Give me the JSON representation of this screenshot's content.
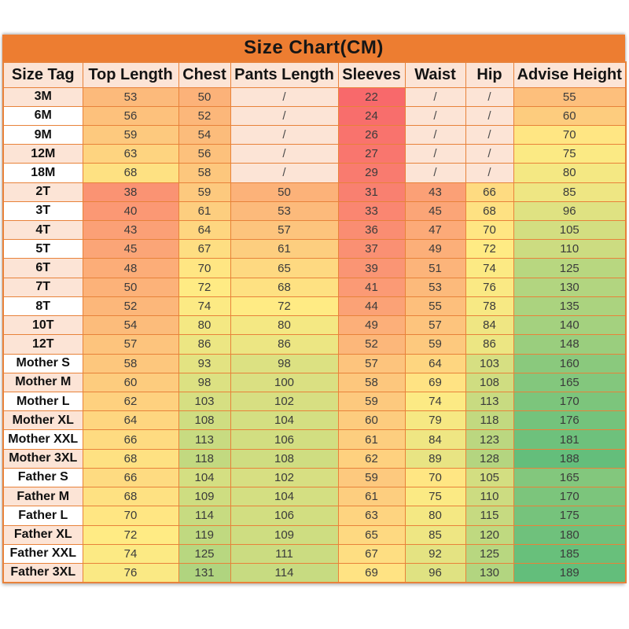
{
  "title": "Size Chart(CM)",
  "colors": {
    "title_bg": "#ED7D31",
    "header_bg": "#FCE4D6",
    "tag_pink": "#FCE4D6",
    "tag_white": "#FFFFFF",
    "slash_bg": "#FCE4D6",
    "grid_border": "#E8823A",
    "scale_min_color": "#F8696B",
    "scale_mid_color": "#FFEB84",
    "scale_max_color": "#63BE7B"
  },
  "chart_data": {
    "type": "table",
    "title": "Size Chart(CM)",
    "columns": [
      "Size Tag",
      "Top Length",
      "Chest",
      "Pants Length",
      "Sleeves",
      "Waist",
      "Hip",
      "Advise Height"
    ],
    "rows": [
      {
        "tag": "3M",
        "tag_bg": "pink",
        "values": [
          "53",
          "50",
          "/",
          "22",
          "/",
          "/",
          "55"
        ]
      },
      {
        "tag": "6M",
        "tag_bg": "white",
        "values": [
          "56",
          "52",
          "/",
          "24",
          "/",
          "/",
          "60"
        ]
      },
      {
        "tag": "9M",
        "tag_bg": "white",
        "values": [
          "59",
          "54",
          "/",
          "26",
          "/",
          "/",
          "70"
        ]
      },
      {
        "tag": "12M",
        "tag_bg": "pink",
        "values": [
          "63",
          "56",
          "/",
          "27",
          "/",
          "/",
          "75"
        ]
      },
      {
        "tag": "18M",
        "tag_bg": "white",
        "values": [
          "68",
          "58",
          "/",
          "29",
          "/",
          "/",
          "80"
        ]
      },
      {
        "tag": "2T",
        "tag_bg": "pink",
        "values": [
          "38",
          "59",
          "50",
          "31",
          "43",
          "66",
          "85"
        ]
      },
      {
        "tag": "3T",
        "tag_bg": "white",
        "values": [
          "40",
          "61",
          "53",
          "33",
          "45",
          "68",
          "96"
        ]
      },
      {
        "tag": "4T",
        "tag_bg": "pink",
        "values": [
          "43",
          "64",
          "57",
          "36",
          "47",
          "70",
          "105"
        ]
      },
      {
        "tag": "5T",
        "tag_bg": "white",
        "values": [
          "45",
          "67",
          "61",
          "37",
          "49",
          "72",
          "110"
        ]
      },
      {
        "tag": "6T",
        "tag_bg": "pink",
        "values": [
          "48",
          "70",
          "65",
          "39",
          "51",
          "74",
          "125"
        ]
      },
      {
        "tag": "7T",
        "tag_bg": "pink",
        "values": [
          "50",
          "72",
          "68",
          "41",
          "53",
          "76",
          "130"
        ]
      },
      {
        "tag": "8T",
        "tag_bg": "white",
        "values": [
          "52",
          "74",
          "72",
          "44",
          "55",
          "78",
          "135"
        ]
      },
      {
        "tag": "10T",
        "tag_bg": "pink",
        "values": [
          "54",
          "80",
          "80",
          "49",
          "57",
          "84",
          "140"
        ]
      },
      {
        "tag": "12T",
        "tag_bg": "pink",
        "values": [
          "57",
          "86",
          "86",
          "52",
          "59",
          "86",
          "148"
        ]
      },
      {
        "tag": "Mother S",
        "tag_bg": "white",
        "values": [
          "58",
          "93",
          "98",
          "57",
          "64",
          "103",
          "160"
        ]
      },
      {
        "tag": "Mother M",
        "tag_bg": "pink",
        "values": [
          "60",
          "98",
          "100",
          "58",
          "69",
          "108",
          "165"
        ]
      },
      {
        "tag": "Mother L",
        "tag_bg": "white",
        "values": [
          "62",
          "103",
          "102",
          "59",
          "74",
          "113",
          "170"
        ]
      },
      {
        "tag": "Mother XL",
        "tag_bg": "pink",
        "values": [
          "64",
          "108",
          "104",
          "60",
          "79",
          "118",
          "176"
        ]
      },
      {
        "tag": "Mother XXL",
        "tag_bg": "white",
        "values": [
          "66",
          "113",
          "106",
          "61",
          "84",
          "123",
          "181"
        ]
      },
      {
        "tag": "Mother 3XL",
        "tag_bg": "pink",
        "values": [
          "68",
          "118",
          "108",
          "62",
          "89",
          "128",
          "188"
        ]
      },
      {
        "tag": "Father S",
        "tag_bg": "white",
        "values": [
          "66",
          "104",
          "102",
          "59",
          "70",
          "105",
          "165"
        ]
      },
      {
        "tag": "Father M",
        "tag_bg": "pink",
        "values": [
          "68",
          "109",
          "104",
          "61",
          "75",
          "110",
          "170"
        ]
      },
      {
        "tag": "Father L",
        "tag_bg": "white",
        "values": [
          "70",
          "114",
          "106",
          "63",
          "80",
          "115",
          "175"
        ]
      },
      {
        "tag": "Father XL",
        "tag_bg": "pink",
        "values": [
          "72",
          "119",
          "109",
          "65",
          "85",
          "120",
          "180"
        ]
      },
      {
        "tag": "Father XXL",
        "tag_bg": "white",
        "values": [
          "74",
          "125",
          "111",
          "67",
          "92",
          "125",
          "185"
        ]
      },
      {
        "tag": "Father 3XL",
        "tag_bg": "pink",
        "values": [
          "76",
          "131",
          "114",
          "69",
          "96",
          "130",
          "189"
        ]
      }
    ]
  }
}
